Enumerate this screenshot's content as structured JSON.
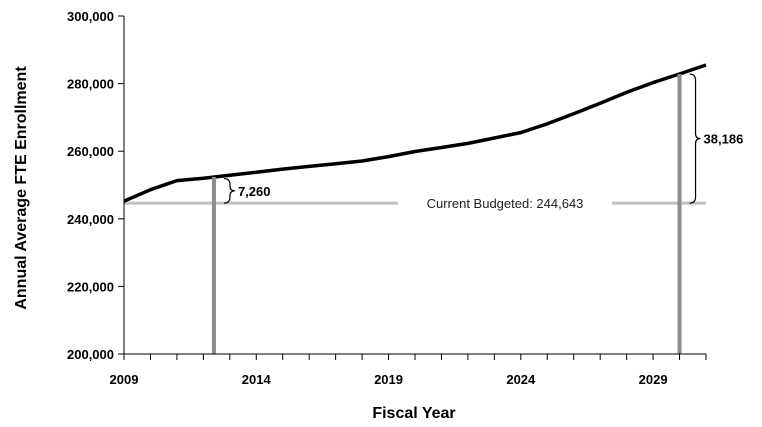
{
  "chart_data": {
    "type": "line",
    "xlabel": "Fiscal Year",
    "ylabel": "Annual Average FTE Enrollment",
    "xlim": [
      2009,
      2031
    ],
    "ylim": [
      200000,
      300000
    ],
    "x_ticks": [
      2009,
      2014,
      2019,
      2024,
      2029
    ],
    "y_ticks": [
      200000,
      220000,
      240000,
      260000,
      280000,
      300000
    ],
    "x_tick_labels": [
      "2009",
      "2014",
      "2019",
      "2024",
      "2029"
    ],
    "y_tick_labels": [
      "200,000",
      "220,000",
      "240,000",
      "260,000",
      "280,000",
      "300,000"
    ],
    "series": [
      {
        "x": [
          2009,
          2010,
          2011,
          2012,
          2013,
          2014,
          2015,
          2016,
          2017,
          2018,
          2019,
          2020,
          2021,
          2022,
          2023,
          2024,
          2025,
          2026,
          2027,
          2028,
          2029,
          2030,
          2031
        ],
        "y": [
          245200,
          248600,
          251300,
          252000,
          252900,
          253800,
          254700,
          255500,
          256300,
          257100,
          258400,
          259900,
          261100,
          262300,
          263900,
          265500,
          268100,
          271100,
          274200,
          277400,
          280300,
          282829,
          285500
        ],
        "color": "#000000"
      }
    ],
    "baseline": {
      "value": 244643,
      "label": "Current Budgeted: 244,643",
      "color": "#c0c0c0"
    },
    "markers": [
      {
        "x": 2012.4,
        "color": "#8c8c8c",
        "difference": 7260,
        "label": "7,260"
      },
      {
        "x": 2030.0,
        "color": "#8c8c8c",
        "difference": 38186,
        "label": "38,186"
      }
    ],
    "grid": false,
    "legend": "none"
  }
}
